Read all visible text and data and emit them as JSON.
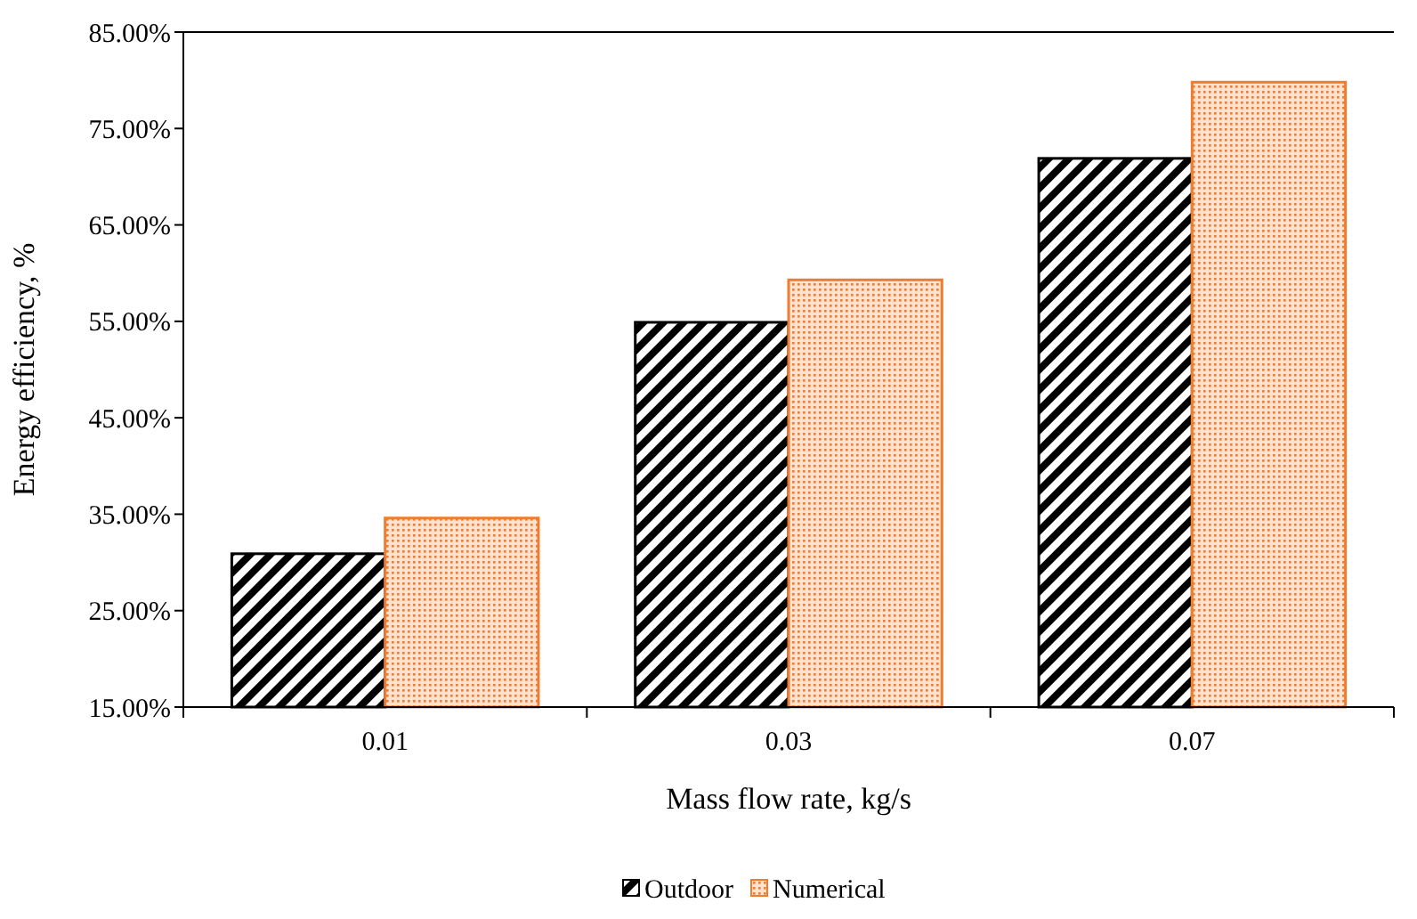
{
  "chart_data": {
    "type": "bar",
    "xlabel": "Mass flow rate, kg/s",
    "ylabel": "Energy efficiency, %",
    "categories": [
      "0.01",
      "0.03",
      "0.07"
    ],
    "series": [
      {
        "name": "Outdoor",
        "color": "#000000",
        "values": [
          30.9,
          54.9,
          71.9
        ]
      },
      {
        "name": "Numerical",
        "color": "#ed7d31",
        "values": [
          34.6,
          59.3,
          79.8
        ]
      }
    ],
    "ylim": [
      15,
      85
    ],
    "yticks": [
      {
        "value": 15,
        "label": "15.00%"
      },
      {
        "value": 25,
        "label": "25.00%"
      },
      {
        "value": 35,
        "label": "35.00%"
      },
      {
        "value": 45,
        "label": "45.00%"
      },
      {
        "value": 55,
        "label": "55.00%"
      },
      {
        "value": 65,
        "label": "65.00%"
      },
      {
        "value": 75,
        "label": "75.00%"
      },
      {
        "value": 85,
        "label": "85.00%"
      }
    ],
    "grid": false,
    "legend": "bottom"
  }
}
